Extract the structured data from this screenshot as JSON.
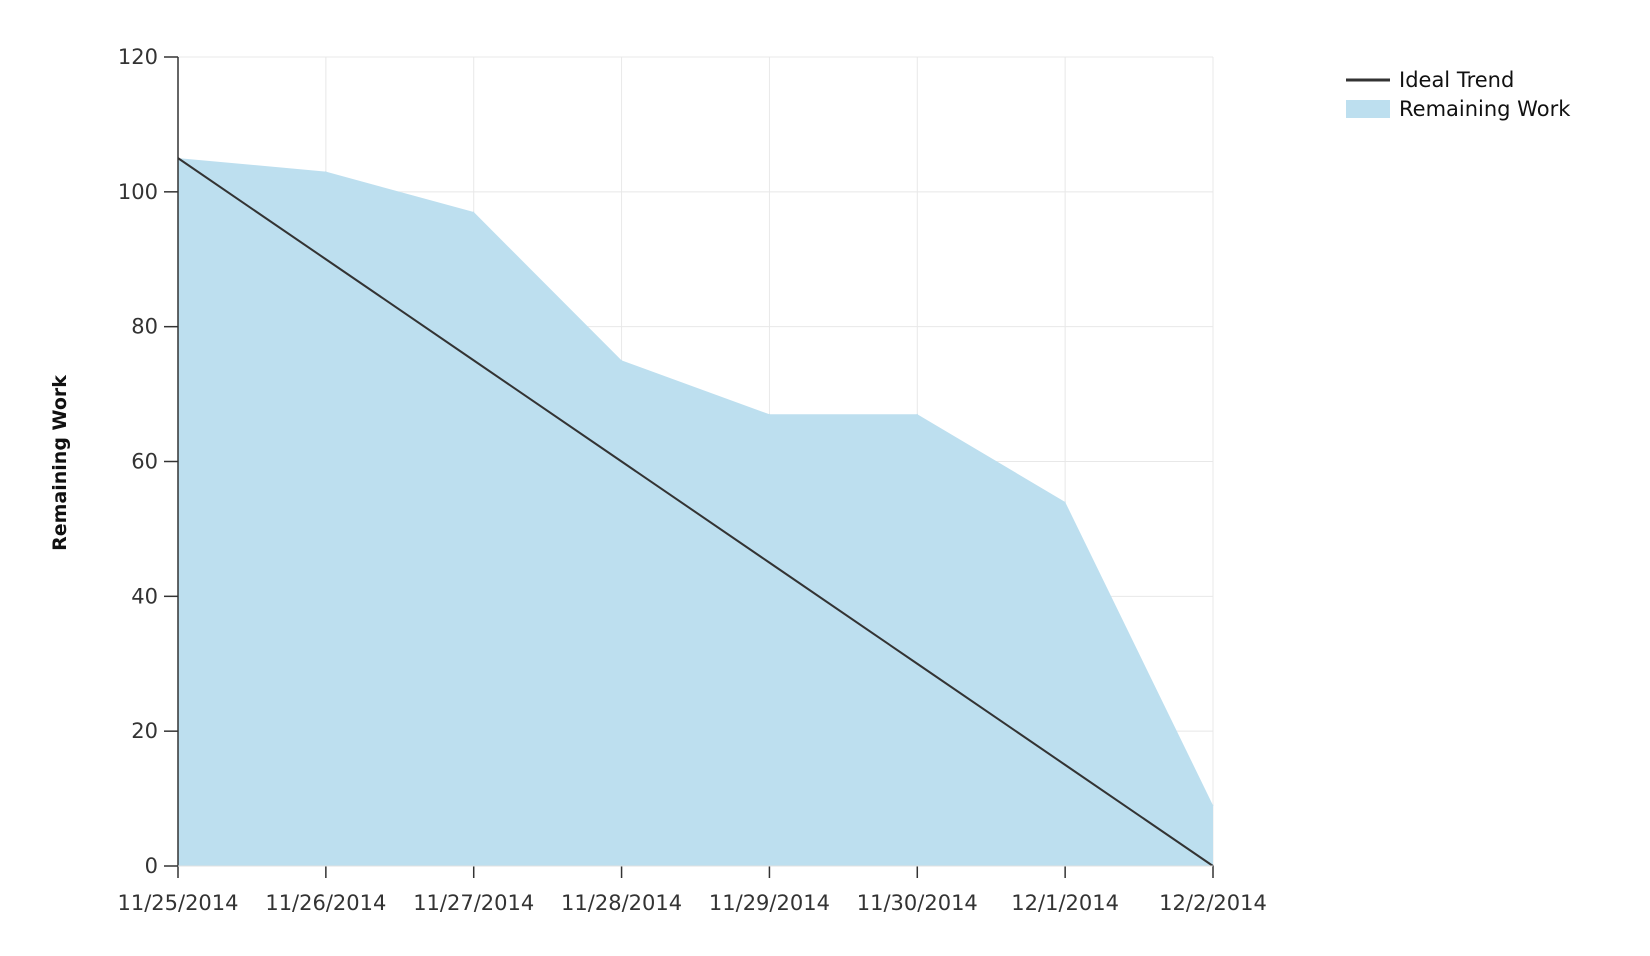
{
  "chart_data": {
    "type": "area",
    "title": "",
    "xlabel": "",
    "ylabel": "Remaining Work",
    "categories": [
      "11/25/2014",
      "11/26/2014",
      "11/27/2014",
      "11/28/2014",
      "11/29/2014",
      "11/30/2014",
      "12/1/2014",
      "12/2/2014"
    ],
    "yticks": [
      0,
      20,
      40,
      60,
      80,
      100,
      120
    ],
    "ylim": [
      0,
      120
    ],
    "grid": true,
    "legend_position": "top-right",
    "series": [
      {
        "name": "Ideal Trend",
        "kind": "line",
        "color": "#333333",
        "values": [
          105,
          90,
          75,
          60,
          45,
          30,
          15,
          0
        ]
      },
      {
        "name": "Remaining Work",
        "kind": "area",
        "color": "#bddfef",
        "values": [
          105,
          103,
          97,
          75,
          67,
          67,
          54,
          9
        ]
      }
    ]
  }
}
